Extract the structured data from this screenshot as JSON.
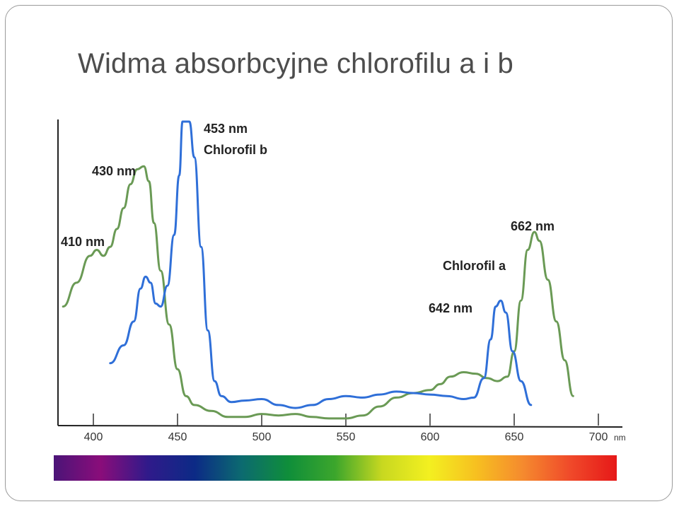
{
  "slide": {
    "title": "Widma absorbcyjne chlorofilu a i b"
  },
  "chart_data": {
    "type": "line",
    "title": "Widma absorbcyjne chlorofilu a i b",
    "xlabel": "nm",
    "ylabel": "",
    "x_unit": "nm",
    "xlim": [
      375,
      700
    ],
    "ylim": [
      0,
      1
    ],
    "grid": false,
    "x_ticks": [
      400,
      450,
      500,
      550,
      600,
      650,
      700
    ],
    "series": [
      {
        "name": "Chlorofil a",
        "color": "#6a9a55",
        "points": [
          [
            382,
            0.38
          ],
          [
            390,
            0.46
          ],
          [
            398,
            0.55
          ],
          [
            402,
            0.57
          ],
          [
            406,
            0.55
          ],
          [
            410,
            0.58
          ],
          [
            414,
            0.64
          ],
          [
            418,
            0.71
          ],
          [
            422,
            0.79
          ],
          [
            426,
            0.84
          ],
          [
            430,
            0.85
          ],
          [
            433,
            0.8
          ],
          [
            436,
            0.66
          ],
          [
            440,
            0.5
          ],
          [
            445,
            0.32
          ],
          [
            450,
            0.17
          ],
          [
            455,
            0.08
          ],
          [
            460,
            0.05
          ],
          [
            470,
            0.03
          ],
          [
            480,
            0.01
          ],
          [
            490,
            0.01
          ],
          [
            500,
            0.02
          ],
          [
            510,
            0.015
          ],
          [
            520,
            0.02
          ],
          [
            530,
            0.01
          ],
          [
            540,
            0.005
          ],
          [
            550,
            0.005
          ],
          [
            560,
            0.015
          ],
          [
            570,
            0.045
          ],
          [
            580,
            0.075
          ],
          [
            590,
            0.09
          ],
          [
            600,
            0.1
          ],
          [
            606,
            0.12
          ],
          [
            612,
            0.145
          ],
          [
            620,
            0.16
          ],
          [
            627,
            0.155
          ],
          [
            634,
            0.14
          ],
          [
            640,
            0.13
          ],
          [
            646,
            0.145
          ],
          [
            650,
            0.23
          ],
          [
            654,
            0.4
          ],
          [
            658,
            0.57
          ],
          [
            662,
            0.63
          ],
          [
            665,
            0.6
          ],
          [
            670,
            0.47
          ],
          [
            675,
            0.33
          ],
          [
            680,
            0.2
          ],
          [
            685,
            0.08
          ]
        ]
      },
      {
        "name": "Chlorofil b",
        "color": "#2f6fd8",
        "points": [
          [
            410,
            0.19
          ],
          [
            418,
            0.25
          ],
          [
            424,
            0.33
          ],
          [
            428,
            0.44
          ],
          [
            431,
            0.48
          ],
          [
            434,
            0.46
          ],
          [
            437,
            0.39
          ],
          [
            440,
            0.38
          ],
          [
            444,
            0.45
          ],
          [
            448,
            0.62
          ],
          [
            451,
            0.82
          ],
          [
            453,
            1.0
          ],
          [
            457,
            1.0
          ],
          [
            460,
            0.88
          ],
          [
            464,
            0.58
          ],
          [
            468,
            0.3
          ],
          [
            472,
            0.13
          ],
          [
            476,
            0.08
          ],
          [
            482,
            0.06
          ],
          [
            490,
            0.065
          ],
          [
            500,
            0.07
          ],
          [
            510,
            0.05
          ],
          [
            520,
            0.04
          ],
          [
            530,
            0.05
          ],
          [
            540,
            0.07
          ],
          [
            550,
            0.08
          ],
          [
            560,
            0.075
          ],
          [
            570,
            0.085
          ],
          [
            580,
            0.095
          ],
          [
            590,
            0.09
          ],
          [
            600,
            0.085
          ],
          [
            610,
            0.08
          ],
          [
            620,
            0.07
          ],
          [
            626,
            0.075
          ],
          [
            632,
            0.14
          ],
          [
            636,
            0.27
          ],
          [
            639,
            0.38
          ],
          [
            642,
            0.4
          ],
          [
            645,
            0.36
          ],
          [
            649,
            0.23
          ],
          [
            654,
            0.13
          ],
          [
            660,
            0.05
          ]
        ]
      }
    ],
    "annotations": [
      {
        "text": "453 nm",
        "x": 453
      },
      {
        "text": "Chlorofil b",
        "x": 453
      },
      {
        "text": "430 nm",
        "x": 430
      },
      {
        "text": "410 nm",
        "x": 410
      },
      {
        "text": "662 nm",
        "x": 662
      },
      {
        "text": "Chlorofil a",
        "x": 662
      },
      {
        "text": "642 nm",
        "x": 642
      }
    ],
    "spectrum_colors": [
      "#4b1478",
      "#8a0d7a",
      "#301a8a",
      "#0c2a86",
      "#0c6a70",
      "#0f8e3a",
      "#3ca62c",
      "#c8d820",
      "#f3f020",
      "#f7c020",
      "#f58a2e",
      "#f04a2a",
      "#e61818"
    ]
  }
}
